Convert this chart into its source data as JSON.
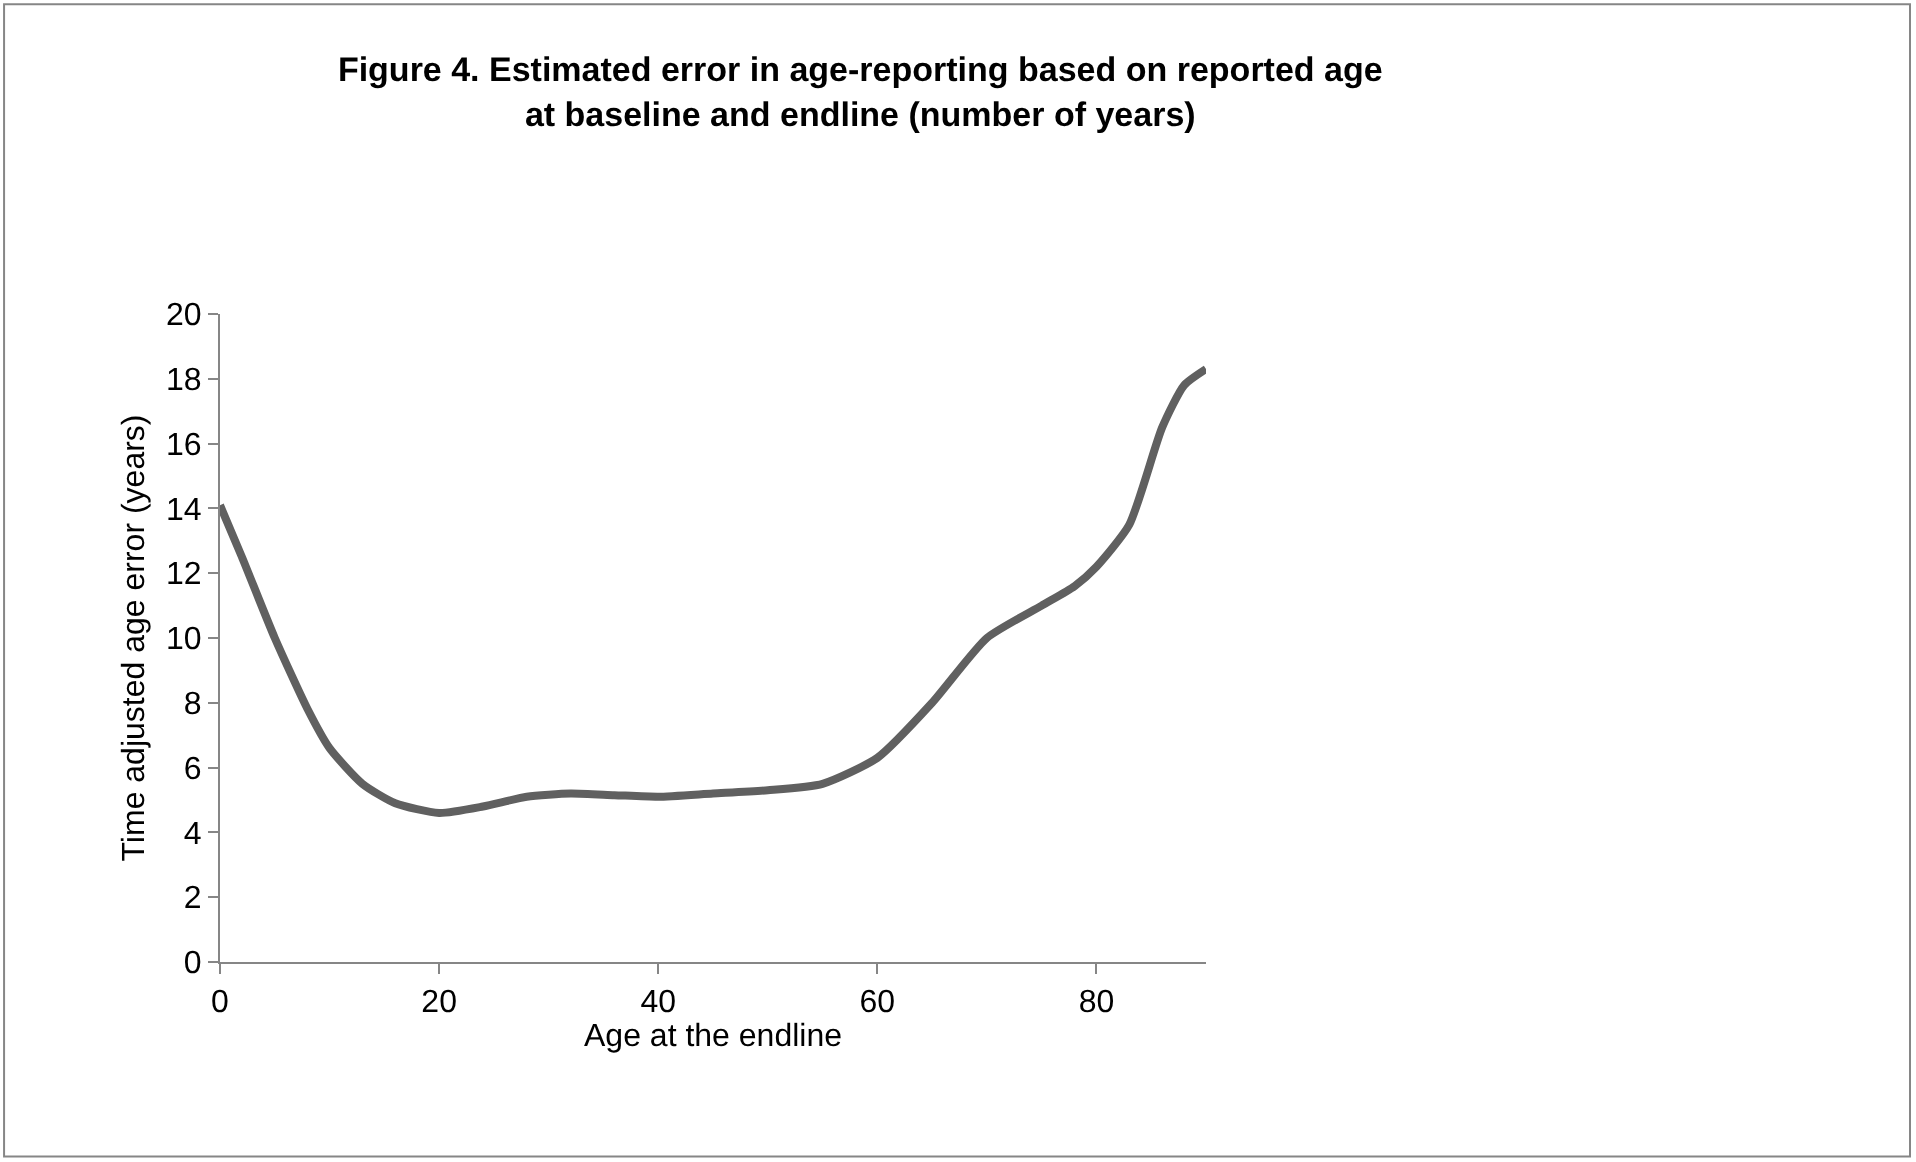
{
  "chart_data": {
    "type": "line",
    "title": "Figure 4. Estimated error in age-reporting based on reported age\nat baseline and endline (number of years)",
    "xlabel": "Age at the endline",
    "ylabel": "Time adjusted age error (years)",
    "x": [
      0,
      2,
      5,
      8,
      10,
      13,
      16,
      20,
      24,
      28,
      32,
      36,
      40,
      45,
      50,
      55,
      60,
      65,
      70,
      75,
      78,
      80,
      83,
      86,
      88,
      90
    ],
    "series": [
      {
        "color": "#606060",
        "values": [
          14.1,
          12.5,
          10,
          7.8,
          6.6,
          5.5,
          4.9,
          4.6,
          4.8,
          5.1,
          5.2,
          5.15,
          5.1,
          5.2,
          5.3,
          5.5,
          6.3,
          8,
          10,
          11,
          11.6,
          12.2,
          13.5,
          16.5,
          17.8,
          18.3
        ]
      }
    ],
    "xlim": [
      0,
      90
    ],
    "xticks": [
      0,
      20,
      40,
      60,
      80
    ],
    "ylim": [
      0,
      20
    ],
    "yticks": [
      0,
      2,
      4,
      6,
      8,
      10,
      12,
      14,
      16,
      18,
      20
    ],
    "legend": false,
    "marker": "none",
    "line_style": "solid"
  }
}
